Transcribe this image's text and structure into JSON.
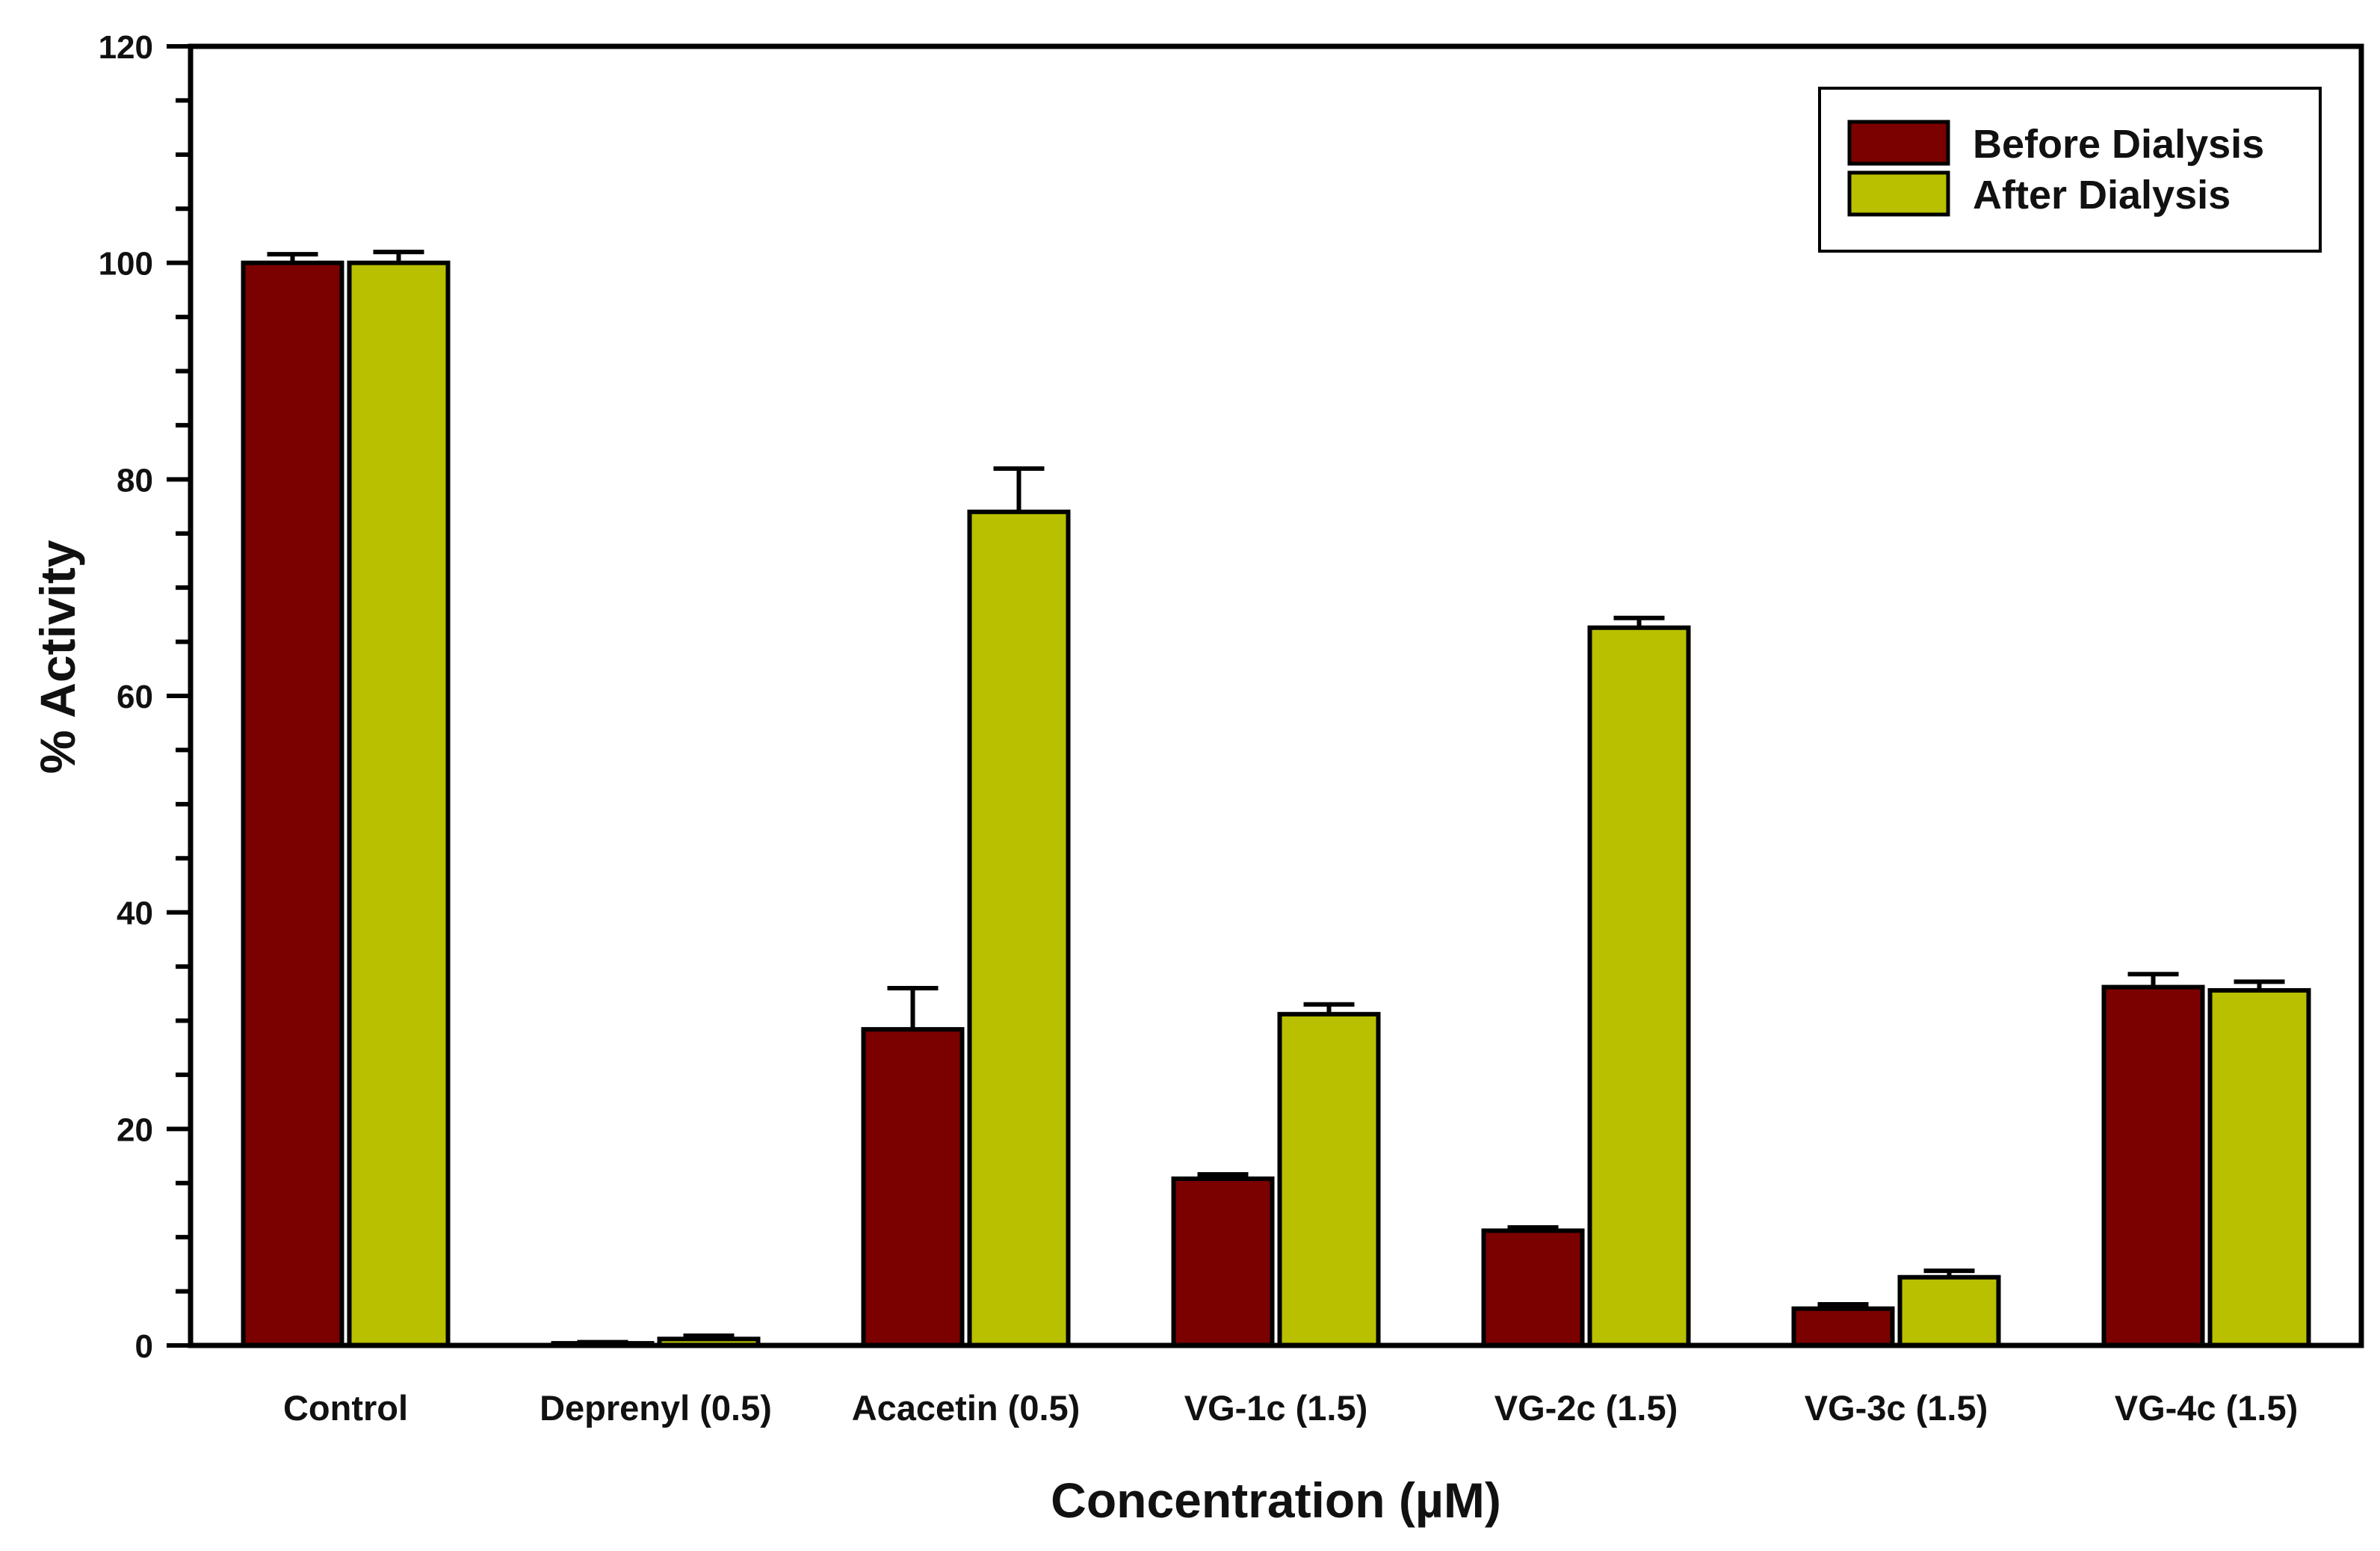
{
  "chart_data": {
    "type": "bar",
    "title": "",
    "xlabel": "Concentration (µM)",
    "ylabel": "% Activity",
    "ylim": [
      0,
      120
    ],
    "yticks": [
      0,
      20,
      40,
      60,
      80,
      100,
      120
    ],
    "grid": false,
    "legend_position": "top-right",
    "categories": [
      "Control",
      "Deprenyl (0.5)",
      "Acacetin (0.5)",
      "VG-1c (1.5)",
      "VG-2c (1.5)",
      "VG-3c (1.5)",
      "VG-4c (1.5)"
    ],
    "series": [
      {
        "name": "Before Dialysis",
        "color": "#7b0000",
        "values": [
          100,
          0.2,
          29.2,
          15.4,
          10.6,
          3.4,
          33.1
        ],
        "errors": [
          0.8,
          0.1,
          3.8,
          0.4,
          0.3,
          0.4,
          1.2
        ]
      },
      {
        "name": "After Dialysis",
        "color": "#b8c000",
        "values": [
          100,
          0.6,
          77,
          30.6,
          66.3,
          6.3,
          32.8
        ],
        "errors": [
          1.0,
          0.3,
          4.0,
          0.9,
          0.9,
          0.6,
          0.8
        ]
      }
    ]
  }
}
